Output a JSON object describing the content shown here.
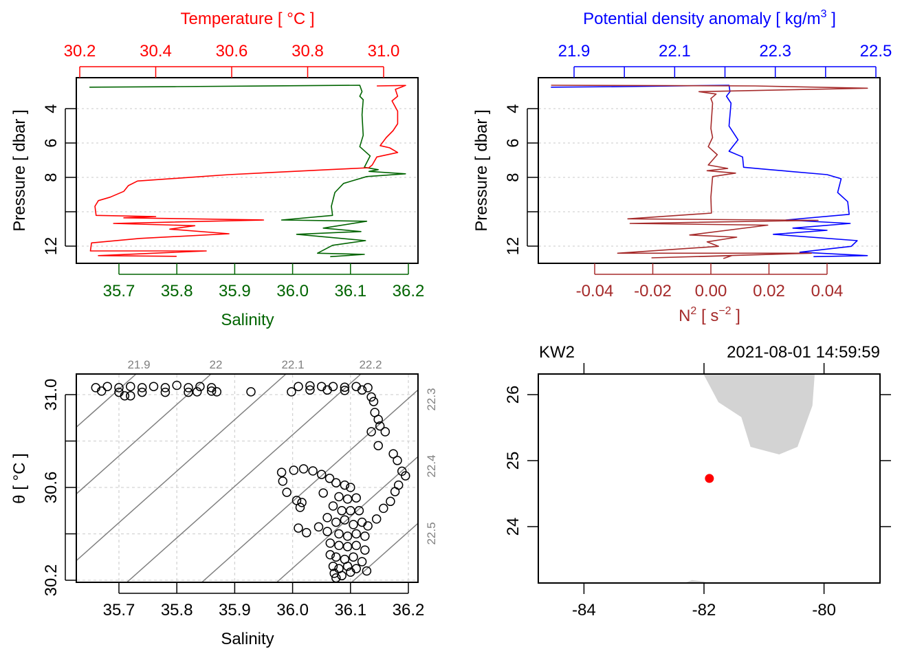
{
  "colors": {
    "temperature": "#ff0000",
    "salinity": "#006400",
    "sigma": "#0000ff",
    "n2": "#a52a2a",
    "land": "#d3d3d3",
    "station": "#ff0000",
    "grid": "#d3d3d3",
    "isopycnal": "#808080"
  },
  "chart_data": [
    {
      "id": "ts_profile",
      "type": "line",
      "title": "Temperature [ °C ]",
      "xlabel": "Salinity",
      "ylabel": "Pressure [ dbar ]",
      "top_axis": {
        "label": "Temperature [ °C ]",
        "ticks": [
          "30.2",
          "30.4",
          "30.6",
          "30.8",
          "31.0"
        ],
        "range": [
          30.2,
          31.0
        ]
      },
      "bottom_axis": {
        "label": "Salinity",
        "ticks": [
          "35.7",
          "35.8",
          "35.9",
          "36.0",
          "36.1",
          "36.2"
        ]
      },
      "y_axis": {
        "ticks": [
          "4",
          "6",
          "8",
          "12"
        ],
        "minor_ticks": [
          10
        ],
        "grid": [
          4,
          6,
          8,
          10,
          12
        ],
        "reversed": true
      },
      "series": [
        {
          "name": "Temperature",
          "points": [
            [
              30.982,
              2.68
            ],
            [
              31.058,
              2.65
            ],
            [
              31.031,
              2.88
            ],
            [
              31.037,
              3.28
            ],
            [
              31.022,
              3.55
            ],
            [
              31.037,
              4.15
            ],
            [
              31.037,
              4.88
            ],
            [
              31.025,
              5.28
            ],
            [
              31.007,
              5.68
            ],
            [
              30.991,
              6.15
            ],
            [
              31.016,
              6.28
            ],
            [
              31.037,
              6.55
            ],
            [
              30.982,
              6.81
            ],
            [
              30.97,
              7.28
            ],
            [
              30.961,
              7.44
            ],
            [
              30.853,
              7.55
            ],
            [
              30.593,
              7.84
            ],
            [
              30.352,
              8.21
            ],
            [
              30.328,
              8.48
            ],
            [
              30.316,
              8.81
            ],
            [
              30.28,
              9.15
            ],
            [
              30.249,
              9.35
            ],
            [
              30.24,
              9.68
            ],
            [
              30.243,
              10.21
            ],
            [
              30.4,
              10.28
            ],
            [
              30.316,
              10.35
            ],
            [
              30.684,
              10.48
            ],
            [
              30.289,
              10.68
            ],
            [
              30.503,
              10.81
            ],
            [
              30.437,
              11.01
            ],
            [
              30.593,
              11.28
            ],
            [
              30.358,
              11.55
            ],
            [
              30.231,
              11.81
            ],
            [
              30.228,
              12.28
            ],
            [
              30.533,
              12.28
            ],
            [
              30.249,
              12.55
            ],
            [
              30.455,
              12.59
            ]
          ]
        },
        {
          "name": "Salinity",
          "points": [
            [
              35.649,
              2.75
            ],
            [
              35.8,
              2.72
            ],
            [
              36.116,
              2.64
            ],
            [
              36.12,
              3.01
            ],
            [
              36.116,
              3.28
            ],
            [
              36.122,
              3.48
            ],
            [
              36.12,
              4.35
            ],
            [
              36.122,
              5.55
            ],
            [
              36.116,
              6.21
            ],
            [
              36.134,
              6.75
            ],
            [
              36.124,
              7.41
            ],
            [
              36.148,
              7.55
            ],
            [
              36.132,
              7.65
            ],
            [
              36.195,
              7.79
            ],
            [
              36.128,
              7.95
            ],
            [
              36.088,
              8.35
            ],
            [
              36.073,
              8.88
            ],
            [
              36.067,
              9.68
            ],
            [
              36.069,
              10.21
            ],
            [
              35.981,
              10.48
            ],
            [
              36.128,
              10.55
            ],
            [
              36.053,
              10.95
            ],
            [
              36.118,
              11.15
            ],
            [
              36.007,
              11.31
            ],
            [
              36.126,
              11.68
            ],
            [
              36.069,
              11.95
            ],
            [
              36.043,
              12.41
            ],
            [
              36.124,
              12.48
            ],
            [
              36.065,
              12.61
            ]
          ]
        }
      ]
    },
    {
      "id": "density_profile",
      "type": "line",
      "title": "Potential density anomaly [ kg/m",
      "title_sup": "3",
      "title_end": " ]",
      "xlabel": "N",
      "xlabel_sup": "2",
      "xlabel_mid": " [ s",
      "xlabel_sup2": "−2",
      "xlabel_end": " ]",
      "ylabel": "Pressure [ dbar ]",
      "top_axis": {
        "ticks": [
          "21.9",
          "22.1",
          "22.3",
          "22.5"
        ],
        "minor_ticks": [
          22.0,
          22.2,
          22.4
        ]
      },
      "bottom_axis": {
        "ticks": [
          "-0.04",
          "-0.02",
          "0.00",
          "0.02",
          "0.04"
        ]
      },
      "y_axis": {
        "ticks": [
          "4",
          "6",
          "8",
          "12"
        ],
        "minor_ticks": [
          10
        ],
        "grid": [
          4,
          6,
          8,
          10,
          12
        ],
        "reversed": true
      },
      "series": [
        {
          "name": "Potential density anomaly",
          "points": [
            [
              21.854,
              2.75
            ],
            [
              22.0,
              2.72
            ],
            [
              22.208,
              2.64
            ],
            [
              22.21,
              3.01
            ],
            [
              22.203,
              3.28
            ],
            [
              22.212,
              3.68
            ],
            [
              22.208,
              5.01
            ],
            [
              22.226,
              5.81
            ],
            [
              22.208,
              6.48
            ],
            [
              22.235,
              6.81
            ],
            [
              22.237,
              7.41
            ],
            [
              22.29,
              7.55
            ],
            [
              22.403,
              7.84
            ],
            [
              22.431,
              8.08
            ],
            [
              22.424,
              8.88
            ],
            [
              22.444,
              9.41
            ],
            [
              22.447,
              10.15
            ],
            [
              22.321,
              10.48
            ],
            [
              22.449,
              10.68
            ],
            [
              22.335,
              10.95
            ],
            [
              22.403,
              11.08
            ],
            [
              22.296,
              11.31
            ],
            [
              22.463,
              11.68
            ],
            [
              22.451,
              12.01
            ],
            [
              22.349,
              12.35
            ],
            [
              22.483,
              12.55
            ],
            [
              22.376,
              12.61
            ]
          ]
        },
        {
          "name": "N2",
          "points": [
            [
              -0.055,
              2.64
            ],
            [
              0.0152,
              2.68
            ],
            [
              0.0539,
              2.81
            ],
            [
              -0.0041,
              3.01
            ],
            [
              0.0018,
              3.15
            ],
            [
              0.0,
              3.41
            ],
            [
              0.0006,
              3.68
            ],
            [
              0.0,
              5.15
            ],
            [
              0.0006,
              5.68
            ],
            [
              -0.0009,
              6.21
            ],
            [
              0.0022,
              6.68
            ],
            [
              -0.0009,
              7.28
            ],
            [
              0.0058,
              7.48
            ],
            [
              -0.0013,
              7.61
            ],
            [
              0.0085,
              7.75
            ],
            [
              0.0006,
              7.95
            ],
            [
              0.0,
              9.15
            ],
            [
              0.0002,
              10.08
            ],
            [
              -0.0286,
              10.41
            ],
            [
              0.0369,
              10.5
            ],
            [
              -0.0278,
              10.68
            ],
            [
              0.0196,
              10.78
            ],
            [
              -0.0073,
              11.35
            ],
            [
              0.0089,
              11.48
            ],
            [
              -0.0013,
              11.75
            ],
            [
              0.0026,
              12.01
            ],
            [
              -0.0321,
              12.41
            ],
            [
              0.0346,
              12.41
            ],
            [
              -0.0203,
              12.68
            ],
            [
              0.0073,
              12.55
            ],
            [
              0.0043,
              12.72
            ]
          ]
        }
      ]
    },
    {
      "id": "ts_diagram",
      "type": "scatter",
      "xlabel": "Salinity",
      "ylabel": "θ [ °C ]",
      "x_ticks": [
        "35.7",
        "35.8",
        "35.9",
        "36.0",
        "36.1",
        "36.2"
      ],
      "y_ticks": [
        "31.0",
        "30.6",
        "30.2"
      ],
      "y_minor_ticks": [
        30.8,
        30.4
      ],
      "isopycnal_labels_top": [
        "21.9",
        "22",
        "22.1",
        "22.2"
      ],
      "isopycnal_labels_right": [
        "22.3",
        "22.4",
        "22.5"
      ],
      "isopycnals": [
        21.8,
        21.9,
        22.0,
        22.1,
        22.2,
        22.3,
        22.4,
        22.5,
        22.6
      ],
      "points": [
        [
          35.66,
          31.03
        ],
        [
          35.68,
          31.035
        ],
        [
          35.7,
          31.03
        ],
        [
          35.72,
          31.035
        ],
        [
          35.74,
          31.03
        ],
        [
          35.76,
          31.035
        ],
        [
          35.78,
          31.03
        ],
        [
          35.8,
          31.04
        ],
        [
          35.82,
          31.03
        ],
        [
          35.84,
          31.035
        ],
        [
          35.86,
          31.03
        ],
        [
          35.67,
          31.015
        ],
        [
          35.7,
          31.01
        ],
        [
          35.74,
          31.01
        ],
        [
          35.78,
          31.01
        ],
        [
          35.82,
          31.01
        ],
        [
          35.86,
          31.015
        ],
        [
          35.71,
          30.995
        ],
        [
          35.72,
          30.995
        ],
        [
          35.835,
          31.012
        ],
        [
          35.869,
          31.012
        ],
        [
          35.928,
          31.012
        ],
        [
          35.998,
          31.012
        ],
        [
          36.01,
          31.035
        ],
        [
          36.03,
          31.038
        ],
        [
          36.05,
          31.035
        ],
        [
          36.07,
          31.035
        ],
        [
          36.09,
          31.032
        ],
        [
          36.11,
          31.035
        ],
        [
          36.13,
          31.03
        ],
        [
          36.03,
          31.02
        ],
        [
          36.06,
          31.02
        ],
        [
          36.09,
          31.018
        ],
        [
          36.12,
          31.02
        ],
        [
          36.136,
          30.99
        ],
        [
          36.14,
          30.97
        ],
        [
          36.142,
          30.923
        ],
        [
          36.148,
          30.893
        ],
        [
          36.151,
          30.865
        ],
        [
          36.136,
          30.84
        ],
        [
          36.16,
          30.84
        ],
        [
          36.148,
          30.78
        ],
        [
          36.174,
          30.745
        ],
        [
          36.181,
          30.716
        ],
        [
          36.189,
          30.67
        ],
        [
          36.195,
          30.65
        ],
        [
          36.183,
          30.61
        ],
        [
          36.177,
          30.582
        ],
        [
          36.169,
          30.54
        ],
        [
          36.157,
          30.51
        ],
        [
          36.145,
          30.464
        ],
        [
          36.13,
          30.434
        ],
        [
          35.981,
          30.665
        ],
        [
          35.983,
          30.627
        ],
        [
          36.002,
          30.674
        ],
        [
          36.019,
          30.68
        ],
        [
          36.035,
          30.671
        ],
        [
          36.05,
          30.656
        ],
        [
          36.064,
          30.639
        ],
        [
          35.99,
          30.579
        ],
        [
          36.007,
          30.544
        ],
        [
          36.013,
          30.514
        ],
        [
          36.016,
          30.535
        ],
        [
          36.053,
          30.576
        ],
        [
          36.01,
          30.425
        ],
        [
          36.024,
          30.405
        ],
        [
          36.075,
          30.62
        ],
        [
          36.09,
          30.61
        ],
        [
          36.1,
          30.6
        ],
        [
          36.08,
          30.56
        ],
        [
          36.095,
          30.55
        ],
        [
          36.11,
          30.555
        ],
        [
          36.07,
          30.52
        ],
        [
          36.085,
          30.5
        ],
        [
          36.1,
          30.5
        ],
        [
          36.115,
          30.5
        ],
        [
          36.06,
          30.47
        ],
        [
          36.075,
          30.45
        ],
        [
          36.09,
          30.46
        ],
        [
          36.105,
          30.44
        ],
        [
          36.12,
          30.45
        ],
        [
          36.045,
          30.43
        ],
        [
          36.06,
          30.41
        ],
        [
          36.08,
          30.4
        ],
        [
          36.095,
          30.39
        ],
        [
          36.11,
          30.4
        ],
        [
          36.125,
          30.39
        ],
        [
          36.065,
          30.36
        ],
        [
          36.08,
          30.35
        ],
        [
          36.095,
          30.345
        ],
        [
          36.11,
          30.35
        ],
        [
          36.125,
          30.33
        ],
        [
          36.065,
          30.31
        ],
        [
          36.075,
          30.3
        ],
        [
          36.09,
          30.29
        ],
        [
          36.105,
          30.3
        ],
        [
          36.12,
          30.28
        ],
        [
          36.07,
          30.26
        ],
        [
          36.08,
          30.25
        ],
        [
          36.095,
          30.26
        ],
        [
          36.11,
          30.25
        ],
        [
          36.072,
          30.23
        ],
        [
          36.085,
          30.22
        ],
        [
          36.075,
          30.21
        ],
        [
          36.1,
          30.235
        ],
        [
          36.128,
          30.24
        ]
      ]
    },
    {
      "id": "map",
      "type": "scatter",
      "station": "KW2",
      "datetime": "2021-08-01 14:59:59",
      "x_ticks": [
        "-84",
        "-82",
        "-80"
      ],
      "y_ticks": [
        "26",
        "25",
        "24"
      ],
      "station_position": {
        "lon": -81.91,
        "lat": 24.73
      },
      "land": [
        [
          [
            -82.008,
            26.4
          ],
          [
            -82.008,
            26.309
          ],
          [
            -81.759,
            25.885
          ],
          [
            -81.378,
            25.659
          ],
          [
            -81.225,
            25.208
          ],
          [
            -80.748,
            25.094
          ],
          [
            -80.442,
            25.208
          ],
          [
            -80.194,
            25.833
          ],
          [
            -80.156,
            26.309
          ],
          [
            -80.156,
            26.4
          ]
        ],
        [
          [
            -82.37,
            23.13
          ],
          [
            -82.2,
            23.19
          ],
          [
            -82.0,
            23.17
          ],
          [
            -81.91,
            23.13
          ]
        ]
      ]
    }
  ]
}
